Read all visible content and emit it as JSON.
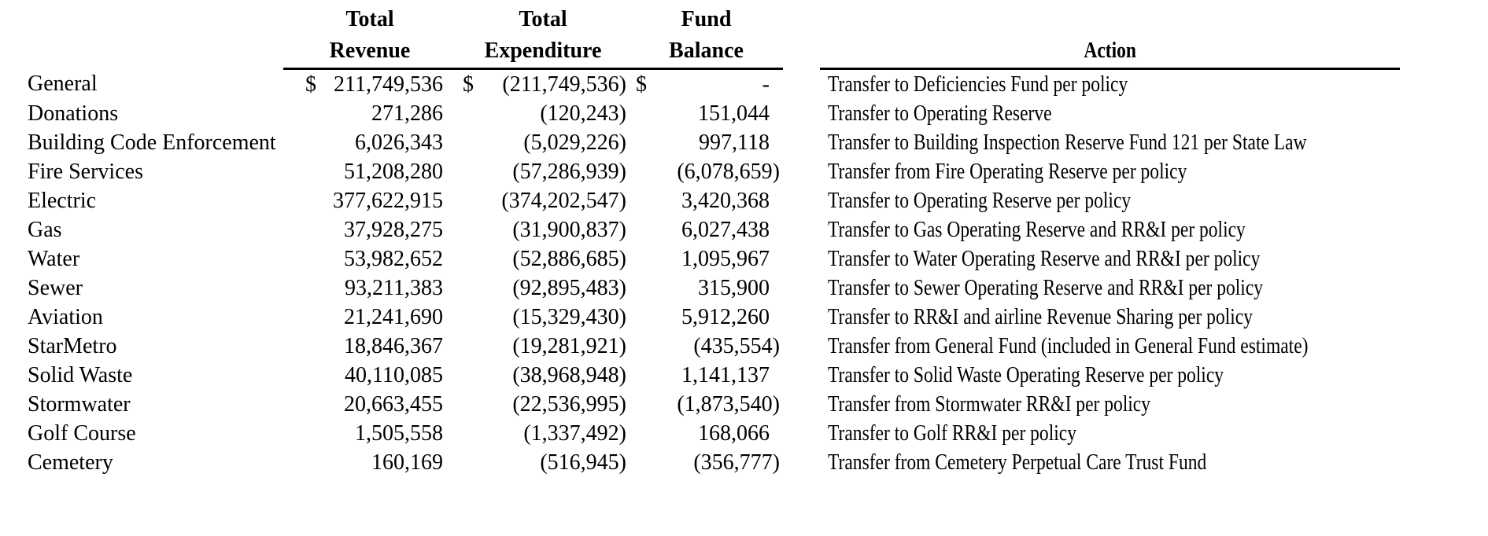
{
  "page": {
    "background_color": "#ffffff",
    "text_color": "#000000",
    "rule_color": "#000000"
  },
  "table": {
    "currency_symbol": "$",
    "headers": {
      "revenue": {
        "line1": "Total",
        "line2": "Revenue"
      },
      "expenditure": {
        "line1": "Total",
        "line2": "Expenditure"
      },
      "balance": {
        "line1": "Fund",
        "line2": "Balance"
      },
      "action": "Action"
    },
    "rows": [
      {
        "fund": "General",
        "revenue": "211,749,536",
        "expenditure": "(211,749,536)",
        "balance": "-",
        "show_currency": true,
        "action": "Transfer to Deficiencies Fund per policy"
      },
      {
        "fund": "Donations",
        "revenue": "271,286",
        "expenditure": "(120,243)",
        "balance": "151,044",
        "show_currency": false,
        "action": "Transfer to Operating Reserve"
      },
      {
        "fund": "Building Code Enforcement",
        "revenue": "6,026,343",
        "expenditure": "(5,029,226)",
        "balance": "997,118",
        "show_currency": false,
        "action": "Transfer to Building Inspection Reserve Fund 121 per State Law"
      },
      {
        "fund": "Fire Services",
        "revenue": "51,208,280",
        "expenditure": "(57,286,939)",
        "balance": "(6,078,659)",
        "show_currency": false,
        "action": "Transfer from Fire Operating Reserve per policy"
      },
      {
        "fund": "Electric",
        "revenue": "377,622,915",
        "expenditure": "(374,202,547)",
        "balance": "3,420,368",
        "show_currency": false,
        "action": "Transfer to Operating Reserve per policy"
      },
      {
        "fund": "Gas",
        "revenue": "37,928,275",
        "expenditure": "(31,900,837)",
        "balance": "6,027,438",
        "show_currency": false,
        "action": "Transfer to Gas Operating Reserve and RR&I per policy"
      },
      {
        "fund": "Water",
        "revenue": "53,982,652",
        "expenditure": "(52,886,685)",
        "balance": "1,095,967",
        "show_currency": false,
        "action": "Transfer to Water Operating Reserve and RR&I per policy"
      },
      {
        "fund": "Sewer",
        "revenue": "93,211,383",
        "expenditure": "(92,895,483)",
        "balance": "315,900",
        "show_currency": false,
        "action": "Transfer to Sewer Operating Reserve and RR&I per policy"
      },
      {
        "fund": "Aviation",
        "revenue": "21,241,690",
        "expenditure": "(15,329,430)",
        "balance": "5,912,260",
        "show_currency": false,
        "action": "Transfer to RR&I and airline Revenue Sharing per policy"
      },
      {
        "fund": "StarMetro",
        "revenue": "18,846,367",
        "expenditure": "(19,281,921)",
        "balance": "(435,554)",
        "show_currency": false,
        "action": "Transfer from General Fund (included in General Fund estimate)"
      },
      {
        "fund": "Solid Waste",
        "revenue": "40,110,085",
        "expenditure": "(38,968,948)",
        "balance": "1,141,137",
        "show_currency": false,
        "action": "Transfer to Solid Waste Operating Reserve per policy"
      },
      {
        "fund": "Stormwater",
        "revenue": "20,663,455",
        "expenditure": "(22,536,995)",
        "balance": "(1,873,540)",
        "show_currency": false,
        "action": "Transfer from Stormwater RR&I per policy"
      },
      {
        "fund": "Golf Course",
        "revenue": "1,505,558",
        "expenditure": "(1,337,492)",
        "balance": "168,066",
        "show_currency": false,
        "action": "Transfer to Golf RR&I per policy"
      },
      {
        "fund": "Cemetery",
        "revenue": "160,169",
        "expenditure": "(516,945)",
        "balance": "(356,777)",
        "show_currency": false,
        "action": "Transfer from Cemetery Perpetual Care Trust Fund"
      }
    ]
  }
}
